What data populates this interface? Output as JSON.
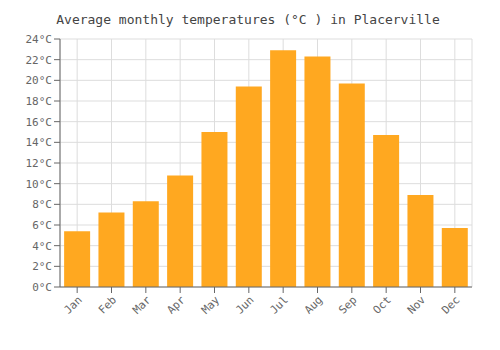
{
  "chart_data": {
    "type": "bar",
    "title": "Average monthly temperatures (°C ) in Placerville",
    "categories": [
      "Jan",
      "Feb",
      "Mar",
      "Apr",
      "May",
      "Jun",
      "Jul",
      "Aug",
      "Sep",
      "Oct",
      "Nov",
      "Dec"
    ],
    "values": [
      5.4,
      7.2,
      8.3,
      10.8,
      15.0,
      19.4,
      22.9,
      22.3,
      19.7,
      14.7,
      8.9,
      5.7
    ],
    "color": "#FFA820",
    "ylim": [
      0,
      24
    ],
    "yticks": [
      {
        "value": 0,
        "label": "0°C"
      },
      {
        "value": 2,
        "label": "2°C"
      },
      {
        "value": 4,
        "label": "4°C"
      },
      {
        "value": 6,
        "label": "6°C"
      },
      {
        "value": 8,
        "label": "8°C"
      },
      {
        "value": 10,
        "label": "10°C"
      },
      {
        "value": 12,
        "label": "12°C"
      },
      {
        "value": 14,
        "label": "14°C"
      },
      {
        "value": 16,
        "label": "16°C"
      },
      {
        "value": 18,
        "label": "18°C"
      },
      {
        "value": 20,
        "label": "20°C"
      },
      {
        "value": 22,
        "label": "22°C"
      },
      {
        "value": 24,
        "label": "24°C"
      }
    ],
    "grid": true
  }
}
